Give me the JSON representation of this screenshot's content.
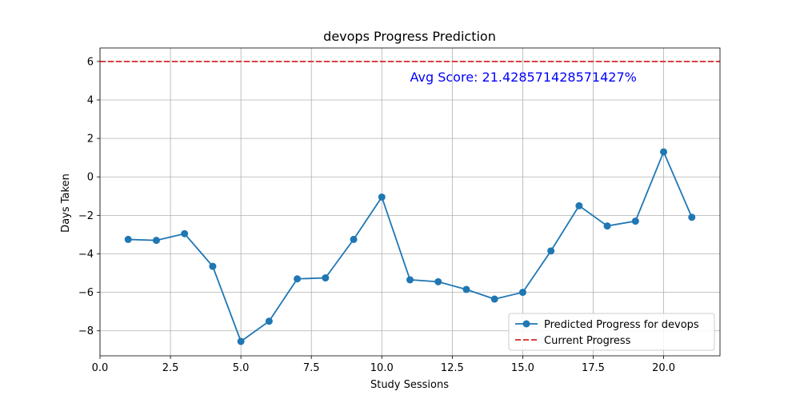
{
  "chart_data": {
    "type": "line",
    "title": "devops Progress Prediction",
    "xlabel": "Study Sessions",
    "ylabel": "Days Taken",
    "xlim": [
      0,
      22.0
    ],
    "ylim": [
      -9.3,
      6.7
    ],
    "xticks": [
      0.0,
      2.5,
      5.0,
      7.5,
      10.0,
      12.5,
      15.0,
      17.5,
      20.0
    ],
    "xtick_labels": [
      "0.0",
      "2.5",
      "5.0",
      "7.5",
      "10.0",
      "12.5",
      "15.0",
      "17.5",
      "20.0"
    ],
    "yticks": [
      -8,
      -6,
      -4,
      -2,
      0,
      2,
      4,
      6
    ],
    "ytick_labels": [
      "−8",
      "−6",
      "−4",
      "−2",
      "0",
      "2",
      "4",
      "6"
    ],
    "grid": true,
    "legend_position": "lower-right",
    "series": [
      {
        "name": "Predicted Progress for devops",
        "color": "#1f77b4",
        "marker": "circle",
        "x": [
          1,
          2,
          3,
          4,
          5,
          6,
          7,
          8,
          9,
          10,
          11,
          12,
          13,
          14,
          15,
          16,
          17,
          18,
          19,
          20,
          21
        ],
        "values": [
          -3.25,
          -3.3,
          -2.95,
          -4.65,
          -8.55,
          -7.5,
          -5.3,
          -5.25,
          -3.25,
          -1.05,
          -5.35,
          -5.45,
          -5.85,
          -6.35,
          -6.0,
          -3.85,
          -1.5,
          -2.55,
          -2.3,
          1.3,
          -2.1
        ]
      }
    ],
    "reference_lines": [
      {
        "name": "Current Progress",
        "y": 6,
        "color": "#d62728",
        "style": "dashed"
      }
    ],
    "annotations": [
      {
        "text": "Avg Score: 21.428571428571427%",
        "x": 11.0,
        "y": 5.2,
        "color": "#0000ff"
      }
    ]
  }
}
